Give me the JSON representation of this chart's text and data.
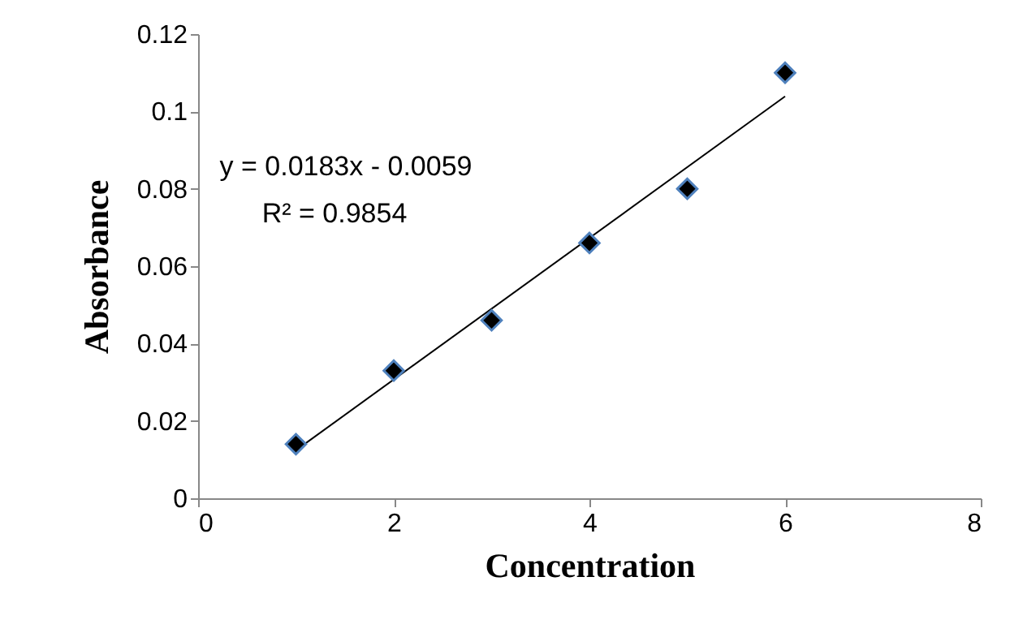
{
  "chart_data": {
    "type": "scatter",
    "xlabel": "Concentration",
    "ylabel": "Absorbance",
    "annotations": [
      "y = 0.0183x - 0.0059",
      "R² = 0.9854"
    ],
    "xlim": [
      0,
      8
    ],
    "xticks": [
      0,
      2,
      4,
      6,
      8
    ],
    "ylim": [
      0,
      0.12
    ],
    "yticks": [
      0,
      0.02,
      0.04,
      0.06,
      0.08,
      0.1,
      0.12
    ],
    "marker": "diamond",
    "series": [
      {
        "color": "#000000",
        "x": [
          1,
          2,
          3,
          4,
          5,
          6
        ],
        "values": [
          0.014,
          0.033,
          0.046,
          0.066,
          0.08,
          0.11
        ]
      },
      {
        "type": "line",
        "marker": "none",
        "color": "#000000",
        "x": [
          1,
          6
        ],
        "values": [
          0.0124,
          0.1039
        ]
      }
    ]
  }
}
